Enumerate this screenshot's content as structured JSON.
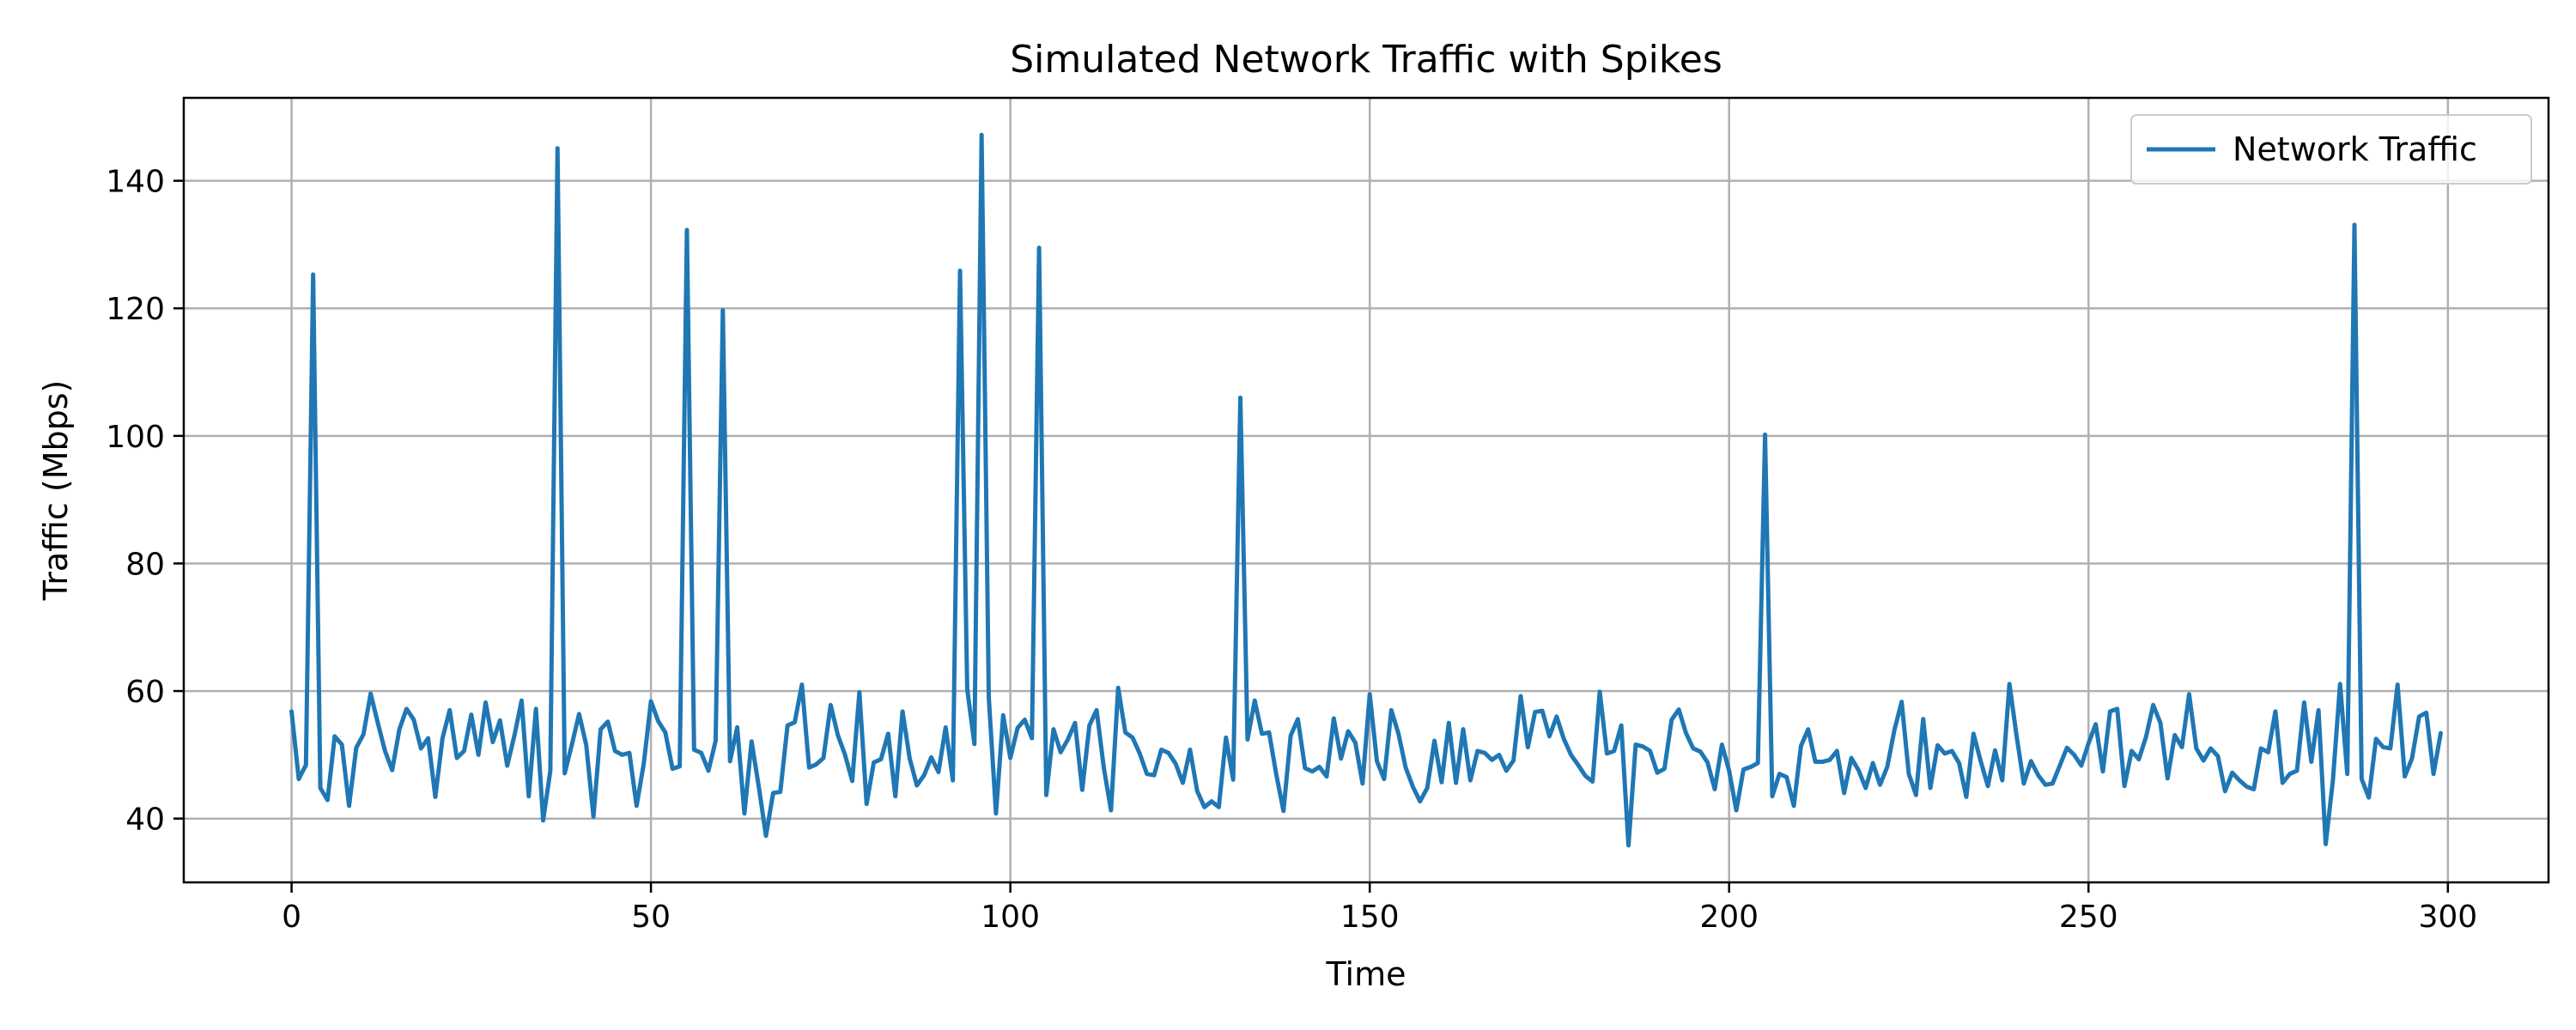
{
  "chart_data": {
    "type": "line",
    "title": "Simulated Network Traffic with Spikes",
    "xlabel": "Time",
    "ylabel": "Traffic (Mbps)",
    "xlim": [
      -15,
      314
    ],
    "ylim": [
      30,
      153
    ],
    "x_ticks": [
      0,
      50,
      100,
      150,
      200,
      250,
      300
    ],
    "y_ticks": [
      40,
      60,
      80,
      100,
      120,
      140
    ],
    "grid": true,
    "legend_position": "top-right",
    "colors": {
      "series": "#1f77b4"
    },
    "series": [
      {
        "name": "Network Traffic",
        "x_start": 0,
        "x_step": 1,
        "values": [
          56.8,
          46.2,
          48.4,
          125.3,
          44.8,
          42.9,
          52.9,
          51.6,
          42.0,
          51.1,
          53.2,
          59.6,
          55.0,
          50.6,
          47.6,
          54.0,
          57.2,
          55.5,
          51.0,
          52.6,
          43.4,
          52.6,
          57.0,
          49.5,
          50.6,
          56.3,
          50.0,
          58.2,
          52.0,
          55.4,
          48.3,
          53.0,
          58.5,
          43.5,
          57.2,
          39.7,
          47.5,
          145.1,
          47.1,
          51.6,
          56.4,
          51.5,
          40.3,
          54.0,
          55.2,
          50.6,
          50.0,
          50.3,
          42.0,
          48.6,
          58.4,
          55.3,
          53.5,
          47.8,
          48.2,
          132.3,
          50.8,
          50.3,
          47.5,
          52.2,
          119.7,
          49.0,
          54.3,
          40.8,
          52.1,
          45.0,
          37.3,
          44.0,
          44.2,
          54.6,
          55.1,
          61.0,
          48.0,
          48.5,
          49.5,
          57.8,
          53.1,
          50.0,
          45.9,
          59.8,
          42.3,
          48.8,
          49.3,
          53.3,
          43.5,
          56.8,
          49.4,
          45.2,
          46.8,
          49.6,
          47.3,
          54.3,
          46.0,
          125.9,
          60.3,
          51.7,
          147.2,
          59.0,
          40.8,
          56.2,
          49.5,
          54.2,
          55.5,
          52.6,
          129.5,
          43.7,
          54.0,
          50.4,
          52.4,
          55.0,
          44.5,
          54.6,
          57.0,
          48.0,
          41.3,
          60.5,
          53.5,
          52.7,
          50.2,
          47.0,
          46.8,
          50.8,
          50.3,
          48.6,
          45.6,
          50.8,
          44.3,
          41.8,
          42.7,
          41.8,
          52.7,
          46.1,
          106.0,
          52.4,
          58.5,
          53.3,
          53.5,
          46.9,
          41.2,
          53.0,
          55.6,
          47.9,
          47.4,
          48.1,
          46.6,
          55.7,
          49.4,
          53.7,
          51.9,
          45.5,
          59.5,
          49.0,
          46.2,
          57.0,
          53.3,
          48.0,
          45.0,
          42.7,
          44.8,
          52.2,
          45.7,
          55.0,
          45.6,
          54.0,
          46.0,
          50.6,
          50.3,
          49.2,
          50.0,
          47.5,
          49.1,
          59.2,
          51.2,
          56.7,
          56.9,
          52.9,
          56.0,
          52.5,
          50.0,
          48.4,
          46.7,
          45.8,
          59.9,
          50.2,
          50.6,
          54.6,
          35.8,
          51.6,
          51.3,
          50.6,
          47.2,
          47.8,
          55.5,
          57.1,
          53.4,
          51.0,
          50.5,
          48.8,
          44.6,
          51.6,
          47.5,
          41.3,
          47.7,
          48.1,
          48.7,
          100.2,
          43.5,
          47.0,
          46.5,
          42.0,
          51.4,
          54.0,
          48.9,
          48.9,
          49.2,
          50.6,
          44.0,
          49.5,
          47.6,
          44.8,
          48.7,
          45.3,
          48.1,
          53.9,
          58.3,
          47.0,
          43.7,
          55.6,
          44.8,
          51.5,
          50.2,
          50.6,
          48.7,
          43.4,
          53.3,
          49.0,
          45.1,
          50.7,
          46.0,
          61.1,
          52.9,
          45.5,
          49.0,
          46.8,
          45.3,
          45.5,
          48.3,
          51.1,
          50.0,
          48.3,
          51.8,
          54.8,
          47.4,
          56.8,
          57.2,
          45.1,
          50.6,
          49.3,
          52.8,
          57.8,
          55.0,
          46.3,
          53.1,
          51.2,
          59.5,
          51.0,
          49.1,
          51.0,
          49.8,
          44.3,
          47.2,
          46.0,
          45.0,
          44.6,
          51.0,
          50.4,
          56.8,
          45.6,
          47.0,
          47.5,
          58.2,
          48.9,
          57.0,
          36.0,
          46.0,
          61.1,
          47.0,
          133.1,
          46.2,
          43.3,
          52.5,
          51.2,
          51.0,
          61.0,
          46.6,
          49.4,
          56.0,
          56.6,
          47.0,
          53.4
        ]
      }
    ]
  }
}
